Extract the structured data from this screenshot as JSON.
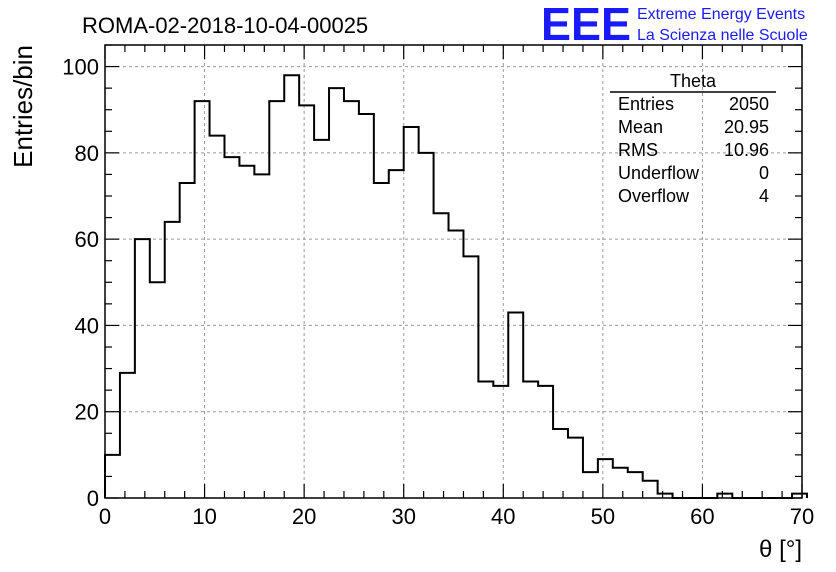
{
  "chart_data": {
    "type": "histogram",
    "title": "ROMA-02-2018-10-04-00025",
    "xlabel": "θ [°]",
    "ylabel": "Entries/bin",
    "xlim": [
      0,
      70
    ],
    "ylim": [
      0,
      105
    ],
    "x_ticks": [
      0,
      10,
      20,
      30,
      40,
      50,
      60,
      70
    ],
    "y_ticks": [
      0,
      20,
      40,
      60,
      80,
      100
    ],
    "grid": true,
    "bin_width": 1.5,
    "bin_start": 0,
    "values": [
      10,
      29,
      60,
      50,
      64,
      73,
      92,
      84,
      79,
      77,
      75,
      92,
      98,
      91,
      83,
      95,
      92,
      89,
      73,
      76,
      86,
      80,
      66,
      62,
      56,
      27,
      26,
      43,
      27,
      26,
      16,
      14,
      6,
      9,
      7,
      6,
      4,
      1,
      0,
      0,
      0,
      1,
      0,
      0,
      0,
      0,
      1
    ]
  },
  "stats_box": {
    "title": "Theta",
    "rows": [
      {
        "label": "Entries",
        "value": "2050"
      },
      {
        "label": "Mean",
        "value": "20.95"
      },
      {
        "label": "RMS",
        "value": "10.96"
      },
      {
        "label": "Underflow",
        "value": "0"
      },
      {
        "label": "Overflow",
        "value": "4"
      }
    ]
  },
  "logo": {
    "mark": "EEE",
    "line1": "Extreme Energy Events",
    "line2": "La Scienza nelle Scuole",
    "color": "#1a1aff"
  }
}
